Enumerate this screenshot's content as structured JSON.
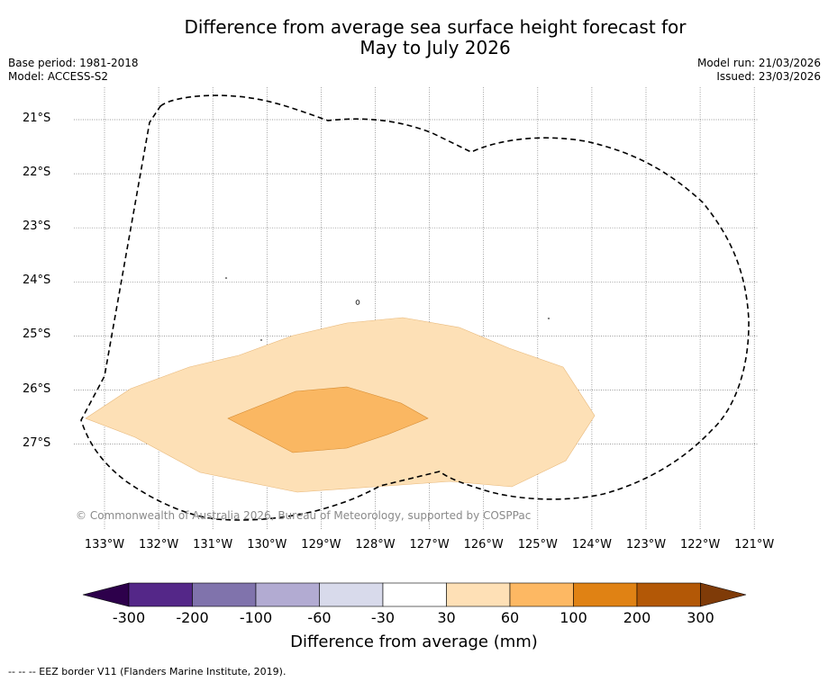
{
  "header": {
    "title_line1": "Difference from average sea surface height forecast for",
    "title_line2": "May to July 2026",
    "base_period": "Base period: 1981-2018",
    "model": "Model: ACCESS-S2",
    "model_run": "Model run: 21/03/2026",
    "issued": "Issued: 23/03/2026"
  },
  "map": {
    "copyright": "© Commonwealth of Australia 2026, Bureau of Meteorology, supported by COSPPac",
    "lat_labels": [
      "21°S",
      "22°S",
      "23°S",
      "24°S",
      "25°S",
      "26°S",
      "27°S"
    ],
    "lon_labels": [
      "133°W",
      "132°W",
      "131°W",
      "130°W",
      "129°W",
      "128°W",
      "127°W",
      "126°W",
      "125°W",
      "124°W",
      "123°W",
      "122°W",
      "121°W"
    ],
    "anomaly_levels_mm": [
      {
        "range": "30 to 60",
        "color": "#fde0b6"
      },
      {
        "range": "60 to 100",
        "color": "#fab762"
      }
    ],
    "eez_line_color": "#000000"
  },
  "colorbar": {
    "tick_labels": [
      "-300",
      "-200",
      "-100",
      "-60",
      "-30",
      "30",
      "60",
      "100",
      "200",
      "300"
    ],
    "colors": [
      "#2d004b",
      "#542788",
      "#8073ac",
      "#b2abd2",
      "#d8daeb",
      "#ffffff",
      "#fee0b6",
      "#fdb863",
      "#e08214",
      "#b35806",
      "#7f3b08"
    ],
    "title": "Difference from average (mm)"
  },
  "footer": {
    "eez_legend": "--  --  -- EEZ border V11 (Flanders Marine Institute, 2019)."
  }
}
